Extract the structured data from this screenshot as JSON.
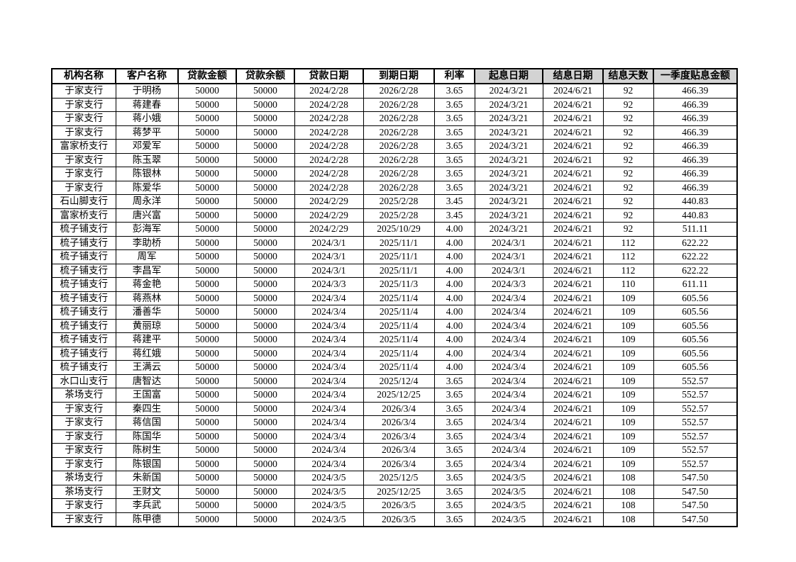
{
  "page": {
    "background": "#ffffff"
  },
  "table": {
    "highlight_color": "#d3d3d3",
    "columns": [
      {
        "label": "机构名称",
        "highlighted": false
      },
      {
        "label": "客户名称",
        "highlighted": false
      },
      {
        "label": "贷款金额",
        "highlighted": false
      },
      {
        "label": "贷款余额",
        "highlighted": false
      },
      {
        "label": "贷款日期",
        "highlighted": false
      },
      {
        "label": "到期日期",
        "highlighted": false
      },
      {
        "label": "利率",
        "highlighted": false
      },
      {
        "label": "起息日期",
        "highlighted": true
      },
      {
        "label": "结息日期",
        "highlighted": true
      },
      {
        "label": "结息天数",
        "highlighted": true
      },
      {
        "label": "一季度贴息金额",
        "highlighted": true
      }
    ],
    "rows": [
      [
        "于家支行",
        "于明杨",
        "50000",
        "50000",
        "2024/2/28",
        "2026/2/28",
        "3.65",
        "2024/3/21",
        "2024/6/21",
        "92",
        "466.39"
      ],
      [
        "于家支行",
        "蒋建春",
        "50000",
        "50000",
        "2024/2/28",
        "2026/2/28",
        "3.65",
        "2024/3/21",
        "2024/6/21",
        "92",
        "466.39"
      ],
      [
        "于家支行",
        "蒋小娥",
        "50000",
        "50000",
        "2024/2/28",
        "2026/2/28",
        "3.65",
        "2024/3/21",
        "2024/6/21",
        "92",
        "466.39"
      ],
      [
        "于家支行",
        "蒋梦平",
        "50000",
        "50000",
        "2024/2/28",
        "2026/2/28",
        "3.65",
        "2024/3/21",
        "2024/6/21",
        "92",
        "466.39"
      ],
      [
        "富家桥支行",
        "邓爱军",
        "50000",
        "50000",
        "2024/2/28",
        "2026/2/28",
        "3.65",
        "2024/3/21",
        "2024/6/21",
        "92",
        "466.39"
      ],
      [
        "于家支行",
        "陈玉翠",
        "50000",
        "50000",
        "2024/2/28",
        "2026/2/28",
        "3.65",
        "2024/3/21",
        "2024/6/21",
        "92",
        "466.39"
      ],
      [
        "于家支行",
        "陈银林",
        "50000",
        "50000",
        "2024/2/28",
        "2026/2/28",
        "3.65",
        "2024/3/21",
        "2024/6/21",
        "92",
        "466.39"
      ],
      [
        "于家支行",
        "陈爱华",
        "50000",
        "50000",
        "2024/2/28",
        "2026/2/28",
        "3.65",
        "2024/3/21",
        "2024/6/21",
        "92",
        "466.39"
      ],
      [
        "石山脚支行",
        "周永洋",
        "50000",
        "50000",
        "2024/2/29",
        "2025/2/28",
        "3.45",
        "2024/3/21",
        "2024/6/21",
        "92",
        "440.83"
      ],
      [
        "富家桥支行",
        "唐兴富",
        "50000",
        "50000",
        "2024/2/29",
        "2025/2/28",
        "3.45",
        "2024/3/21",
        "2024/6/21",
        "92",
        "440.83"
      ],
      [
        "梳子铺支行",
        "彭海军",
        "50000",
        "50000",
        "2024/2/29",
        "2025/10/29",
        "4.00",
        "2024/3/21",
        "2024/6/21",
        "92",
        "511.11"
      ],
      [
        "梳子铺支行",
        "李助桥",
        "50000",
        "50000",
        "2024/3/1",
        "2025/11/1",
        "4.00",
        "2024/3/1",
        "2024/6/21",
        "112",
        "622.22"
      ],
      [
        "梳子铺支行",
        "周军",
        "50000",
        "50000",
        "2024/3/1",
        "2025/11/1",
        "4.00",
        "2024/3/1",
        "2024/6/21",
        "112",
        "622.22"
      ],
      [
        "梳子铺支行",
        "李昌军",
        "50000",
        "50000",
        "2024/3/1",
        "2025/11/1",
        "4.00",
        "2024/3/1",
        "2024/6/21",
        "112",
        "622.22"
      ],
      [
        "梳子铺支行",
        "蒋金艳",
        "50000",
        "50000",
        "2024/3/3",
        "2025/11/3",
        "4.00",
        "2024/3/3",
        "2024/6/21",
        "110",
        "611.11"
      ],
      [
        "梳子铺支行",
        "蒋燕林",
        "50000",
        "50000",
        "2024/3/4",
        "2025/11/4",
        "4.00",
        "2024/3/4",
        "2024/6/21",
        "109",
        "605.56"
      ],
      [
        "梳子铺支行",
        "潘善华",
        "50000",
        "50000",
        "2024/3/4",
        "2025/11/4",
        "4.00",
        "2024/3/4",
        "2024/6/21",
        "109",
        "605.56"
      ],
      [
        "梳子铺支行",
        "黄丽琼",
        "50000",
        "50000",
        "2024/3/4",
        "2025/11/4",
        "4.00",
        "2024/3/4",
        "2024/6/21",
        "109",
        "605.56"
      ],
      [
        "梳子铺支行",
        "蒋建平",
        "50000",
        "50000",
        "2024/3/4",
        "2025/11/4",
        "4.00",
        "2024/3/4",
        "2024/6/21",
        "109",
        "605.56"
      ],
      [
        "梳子铺支行",
        "蒋红娥",
        "50000",
        "50000",
        "2024/3/4",
        "2025/11/4",
        "4.00",
        "2024/3/4",
        "2024/6/21",
        "109",
        "605.56"
      ],
      [
        "梳子铺支行",
        "王满云",
        "50000",
        "50000",
        "2024/3/4",
        "2025/11/4",
        "4.00",
        "2024/3/4",
        "2024/6/21",
        "109",
        "605.56"
      ],
      [
        "水口山支行",
        "唐智达",
        "50000",
        "50000",
        "2024/3/4",
        "2025/12/4",
        "3.65",
        "2024/3/4",
        "2024/6/21",
        "109",
        "552.57"
      ],
      [
        "茶场支行",
        "王国富",
        "50000",
        "50000",
        "2024/3/4",
        "2025/12/25",
        "3.65",
        "2024/3/4",
        "2024/6/21",
        "109",
        "552.57"
      ],
      [
        "于家支行",
        "秦四生",
        "50000",
        "50000",
        "2024/3/4",
        "2026/3/4",
        "3.65",
        "2024/3/4",
        "2024/6/21",
        "109",
        "552.57"
      ],
      [
        "于家支行",
        "蒋信国",
        "50000",
        "50000",
        "2024/3/4",
        "2026/3/4",
        "3.65",
        "2024/3/4",
        "2024/6/21",
        "109",
        "552.57"
      ],
      [
        "于家支行",
        "陈国华",
        "50000",
        "50000",
        "2024/3/4",
        "2026/3/4",
        "3.65",
        "2024/3/4",
        "2024/6/21",
        "109",
        "552.57"
      ],
      [
        "于家支行",
        "陈树生",
        "50000",
        "50000",
        "2024/3/4",
        "2026/3/4",
        "3.65",
        "2024/3/4",
        "2024/6/21",
        "109",
        "552.57"
      ],
      [
        "于家支行",
        "陈银国",
        "50000",
        "50000",
        "2024/3/4",
        "2026/3/4",
        "3.65",
        "2024/3/4",
        "2024/6/21",
        "109",
        "552.57"
      ],
      [
        "茶场支行",
        "朱新国",
        "50000",
        "50000",
        "2024/3/5",
        "2025/12/5",
        "3.65",
        "2024/3/5",
        "2024/6/21",
        "108",
        "547.50"
      ],
      [
        "茶场支行",
        "王财文",
        "50000",
        "50000",
        "2024/3/5",
        "2025/12/25",
        "3.65",
        "2024/3/5",
        "2024/6/21",
        "108",
        "547.50"
      ],
      [
        "于家支行",
        "李兵武",
        "50000",
        "50000",
        "2024/3/5",
        "2026/3/5",
        "3.65",
        "2024/3/5",
        "2024/6/21",
        "108",
        "547.50"
      ],
      [
        "于家支行",
        "陈甲德",
        "50000",
        "50000",
        "2024/3/5",
        "2026/3/5",
        "3.65",
        "2024/3/5",
        "2024/6/21",
        "108",
        "547.50"
      ]
    ]
  }
}
